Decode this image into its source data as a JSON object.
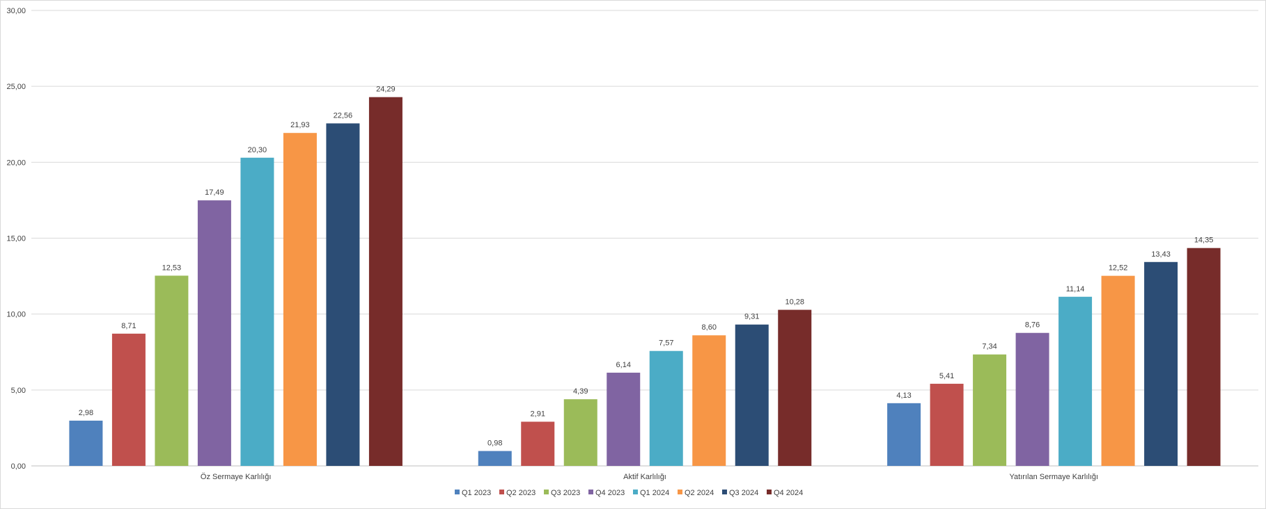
{
  "chart_data": {
    "type": "bar",
    "categories": [
      "Öz Sermaye Karlılığı",
      "Aktif Karlılığı",
      "Yatırılan Sermaye Karlılığı"
    ],
    "series": [
      {
        "name": "Q1 2023",
        "color": "#4f81bd",
        "values": [
          2.98,
          0.98,
          4.13
        ],
        "labels": [
          "2,98",
          "0,98",
          "4,13"
        ]
      },
      {
        "name": "Q2 2023",
        "color": "#c0504d",
        "values": [
          8.71,
          2.91,
          5.41
        ],
        "labels": [
          "8,71",
          "2,91",
          "5,41"
        ]
      },
      {
        "name": "Q3 2023",
        "color": "#9bbb59",
        "values": [
          12.53,
          4.39,
          7.34
        ],
        "labels": [
          "12,53",
          "4,39",
          "7,34"
        ]
      },
      {
        "name": "Q4 2023",
        "color": "#8064a2",
        "values": [
          17.49,
          6.14,
          8.76
        ],
        "labels": [
          "17,49",
          "6,14",
          "8,76"
        ]
      },
      {
        "name": "Q1 2024",
        "color": "#4bacc6",
        "values": [
          20.3,
          7.57,
          11.14
        ],
        "labels": [
          "20,30",
          "7,57",
          "11,14"
        ]
      },
      {
        "name": "Q2 2024",
        "color": "#f79646",
        "values": [
          21.93,
          8.6,
          12.52
        ],
        "labels": [
          "21,93",
          "8,60",
          "12,52"
        ]
      },
      {
        "name": "Q3 2024",
        "color": "#2c4d75",
        "values": [
          22.56,
          9.31,
          13.43
        ],
        "labels": [
          "22,56",
          "9,31",
          "13,43"
        ]
      },
      {
        "name": "Q4 2024",
        "color": "#772c2a",
        "values": [
          24.29,
          10.28,
          14.35
        ],
        "labels": [
          "24,29",
          "10,28",
          "14,35"
        ]
      }
    ],
    "ylim": [
      0,
      30
    ],
    "yticks": [
      0,
      5,
      10,
      15,
      20,
      25,
      30
    ],
    "ytick_labels": [
      "0,00",
      "5,00",
      "10,00",
      "15,00",
      "20,00",
      "25,00",
      "30,00"
    ],
    "grid": true,
    "legend_position": "bottom",
    "title": "",
    "xlabel": "",
    "ylabel": ""
  }
}
